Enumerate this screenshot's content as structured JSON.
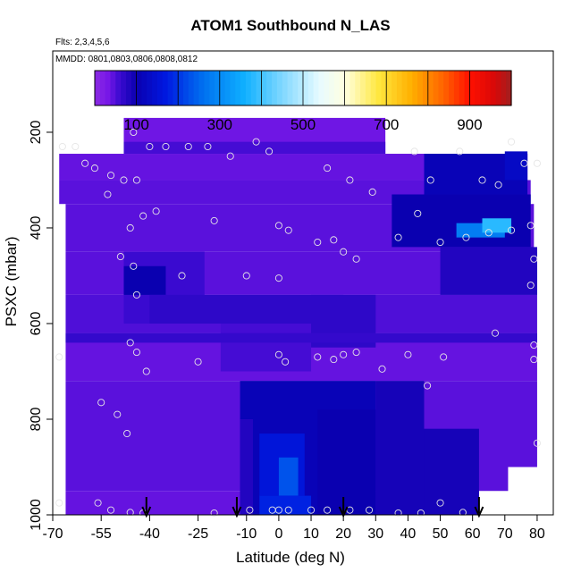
{
  "header": {
    "title": "ATOM1 Southbound N_LAS",
    "flights_note": "Flts: 2,3,4,5,6",
    "dates_note": "MMDD: 0801,0803,0806,0808,0812"
  },
  "chart_data": {
    "type": "heatmap",
    "title": "ATOM1 Southbound N_LAS",
    "xlabel": "Latitude (deg N)",
    "ylabel": "PSXC (mbar)",
    "xlim": [
      -70,
      85
    ],
    "ylim": [
      1000,
      30
    ],
    "y_reversed": true,
    "x_ticks": [
      -70,
      -55,
      -40,
      -25,
      -10,
      0,
      10,
      20,
      30,
      40,
      50,
      60,
      70,
      80
    ],
    "y_ticks": [
      200,
      400,
      600,
      800,
      1000
    ],
    "colorbar": {
      "range": [
        0,
        1000
      ],
      "ticks": [
        100,
        300,
        500,
        700,
        900
      ],
      "stops": [
        {
          "v": 0,
          "c": "#8a2be2"
        },
        {
          "v": 30,
          "c": "#7a18e8"
        },
        {
          "v": 60,
          "c": "#3a0ad0"
        },
        {
          "v": 100,
          "c": "#0a00b0"
        },
        {
          "v": 170,
          "c": "#0018e0"
        },
        {
          "v": 260,
          "c": "#0070f0"
        },
        {
          "v": 360,
          "c": "#10b0ff"
        },
        {
          "v": 450,
          "c": "#80d8ff"
        },
        {
          "v": 540,
          "c": "#e8fbff"
        },
        {
          "v": 600,
          "c": "#ffffe0"
        },
        {
          "v": 680,
          "c": "#ffe840"
        },
        {
          "v": 760,
          "c": "#ffb000"
        },
        {
          "v": 840,
          "c": "#ff6000"
        },
        {
          "v": 900,
          "c": "#ff1000"
        },
        {
          "v": 960,
          "c": "#d80808"
        },
        {
          "v": 1000,
          "c": "#a02020"
        }
      ]
    },
    "cells": [
      {
        "lat": [
          -48,
          33
        ],
        "p": [
          170,
          245
        ],
        "v": 35
      },
      {
        "lat": [
          -68,
          77
        ],
        "p": [
          245,
          300
        ],
        "v": 40
      },
      {
        "lat": [
          -68,
          78
        ],
        "p": [
          300,
          350
        ],
        "v": 45
      },
      {
        "lat": [
          -66,
          79
        ],
        "p": [
          350,
          450
        ],
        "v": 45
      },
      {
        "lat": [
          -66,
          80
        ],
        "p": [
          450,
          540
        ],
        "v": 45
      },
      {
        "lat": [
          -66,
          80
        ],
        "p": [
          540,
          620
        ],
        "v": 50
      },
      {
        "lat": [
          -66,
          80
        ],
        "p": [
          620,
          720
        ],
        "v": 40
      },
      {
        "lat": [
          -66,
          80
        ],
        "p": [
          720,
          900
        ],
        "v": 45
      },
      {
        "lat": [
          -66,
          71
        ],
        "p": [
          900,
          950
        ],
        "v": 45
      },
      {
        "lat": [
          -66,
          62
        ],
        "p": [
          950,
          1000
        ],
        "v": 40
      },
      {
        "lat": [
          -48,
          -23
        ],
        "p": [
          450,
          600
        ],
        "v": 60
      },
      {
        "lat": [
          -48,
          -35
        ],
        "p": [
          480,
          540
        ],
        "v": 100
      },
      {
        "lat": [
          -48,
          33
        ],
        "p": [
          220,
          245
        ],
        "v": 55
      },
      {
        "lat": [
          -40,
          20
        ],
        "p": [
          540,
          600
        ],
        "v": 70
      },
      {
        "lat": [
          -18,
          10
        ],
        "p": [
          600,
          700
        ],
        "v": 55
      },
      {
        "lat": [
          -12,
          30
        ],
        "p": [
          720,
          1000
        ],
        "v": 110
      },
      {
        "lat": [
          -6,
          8
        ],
        "p": [
          830,
          960
        ],
        "v": 160
      },
      {
        "lat": [
          0,
          6
        ],
        "p": [
          880,
          960
        ],
        "v": 230
      },
      {
        "lat": [
          -6,
          10
        ],
        "p": [
          960,
          1000
        ],
        "v": 180
      },
      {
        "lat": [
          -12,
          -8
        ],
        "p": [
          800,
          1000
        ],
        "v": 80
      },
      {
        "lat": [
          12,
          30
        ],
        "p": [
          780,
          1000
        ],
        "v": 100
      },
      {
        "lat": [
          30,
          45
        ],
        "p": [
          720,
          1000
        ],
        "v": 90
      },
      {
        "lat": [
          45,
          62
        ],
        "p": [
          820,
          1000
        ],
        "v": 90
      },
      {
        "lat": [
          35,
          78
        ],
        "p": [
          330,
          440
        ],
        "v": 100
      },
      {
        "lat": [
          45,
          77
        ],
        "p": [
          245,
          330
        ],
        "v": 110
      },
      {
        "lat": [
          55,
          70
        ],
        "p": [
          390,
          420
        ],
        "v": 280
      },
      {
        "lat": [
          63,
          72
        ],
        "p": [
          380,
          410
        ],
        "v": 380
      },
      {
        "lat": [
          70,
          77
        ],
        "p": [
          240,
          300
        ],
        "v": 130
      },
      {
        "lat": [
          50,
          80
        ],
        "p": [
          440,
          540
        ],
        "v": 80
      },
      {
        "lat": [
          10,
          30
        ],
        "p": [
          540,
          650
        ],
        "v": 70
      },
      {
        "lat": [
          -66,
          80
        ],
        "p": [
          620,
          640
        ],
        "v": 65
      }
    ],
    "obs_points": [
      [
        -67,
        230
      ],
      [
        -63,
        230
      ],
      [
        -45,
        200
      ],
      [
        -40,
        230
      ],
      [
        -35,
        230
      ],
      [
        -28,
        230
      ],
      [
        -22,
        230
      ],
      [
        -15,
        250
      ],
      [
        -7,
        220
      ],
      [
        -3,
        240
      ],
      [
        15,
        275
      ],
      [
        22,
        300
      ],
      [
        29,
        325
      ],
      [
        42,
        240
      ],
      [
        47,
        300
      ],
      [
        56,
        240
      ],
      [
        63,
        300
      ],
      [
        68,
        310
      ],
      [
        72,
        220
      ],
      [
        76,
        265
      ],
      [
        80,
        265
      ],
      [
        -60,
        265
      ],
      [
        -57,
        275
      ],
      [
        -52,
        290
      ],
      [
        -48,
        300
      ],
      [
        -53,
        330
      ],
      [
        -44,
        300
      ],
      [
        -46,
        400
      ],
      [
        -42,
        375
      ],
      [
        -38,
        365
      ],
      [
        -20,
        385
      ],
      [
        0,
        395
      ],
      [
        3,
        405
      ],
      [
        12,
        430
      ],
      [
        17,
        425
      ],
      [
        20,
        450
      ],
      [
        24,
        465
      ],
      [
        37,
        420
      ],
      [
        43,
        370
      ],
      [
        50,
        430
      ],
      [
        58,
        420
      ],
      [
        65,
        410
      ],
      [
        72,
        405
      ],
      [
        78,
        395
      ],
      [
        79,
        465
      ],
      [
        -49,
        460
      ],
      [
        -45,
        480
      ],
      [
        -44,
        540
      ],
      [
        -30,
        500
      ],
      [
        -10,
        500
      ],
      [
        0,
        505
      ],
      [
        -46,
        640
      ],
      [
        -44,
        660
      ],
      [
        -41,
        700
      ],
      [
        -25,
        680
      ],
      [
        -68,
        670
      ],
      [
        0,
        665
      ],
      [
        2,
        680
      ],
      [
        12,
        670
      ],
      [
        17,
        675
      ],
      [
        20,
        665
      ],
      [
        24,
        660
      ],
      [
        32,
        695
      ],
      [
        40,
        665
      ],
      [
        46,
        730
      ],
      [
        51,
        670
      ],
      [
        67,
        620
      ],
      [
        79,
        645
      ],
      [
        79,
        675
      ],
      [
        78,
        520
      ],
      [
        80,
        850
      ],
      [
        -55,
        765
      ],
      [
        -50,
        790
      ],
      [
        -47,
        830
      ],
      [
        -68,
        975
      ],
      [
        -56,
        975
      ],
      [
        -52,
        990
      ],
      [
        -46,
        995
      ],
      [
        -42,
        1000
      ],
      [
        -20,
        1000
      ],
      [
        -9,
        990
      ],
      [
        -2,
        990
      ],
      [
        0,
        990
      ],
      [
        3,
        990
      ],
      [
        10,
        990
      ],
      [
        15,
        990
      ],
      [
        22,
        990
      ],
      [
        28,
        990
      ],
      [
        37,
        1010
      ],
      [
        44,
        1005
      ],
      [
        50,
        975
      ],
      [
        57,
        995
      ]
    ],
    "arrows": [
      -41,
      -13,
      20,
      62
    ]
  }
}
